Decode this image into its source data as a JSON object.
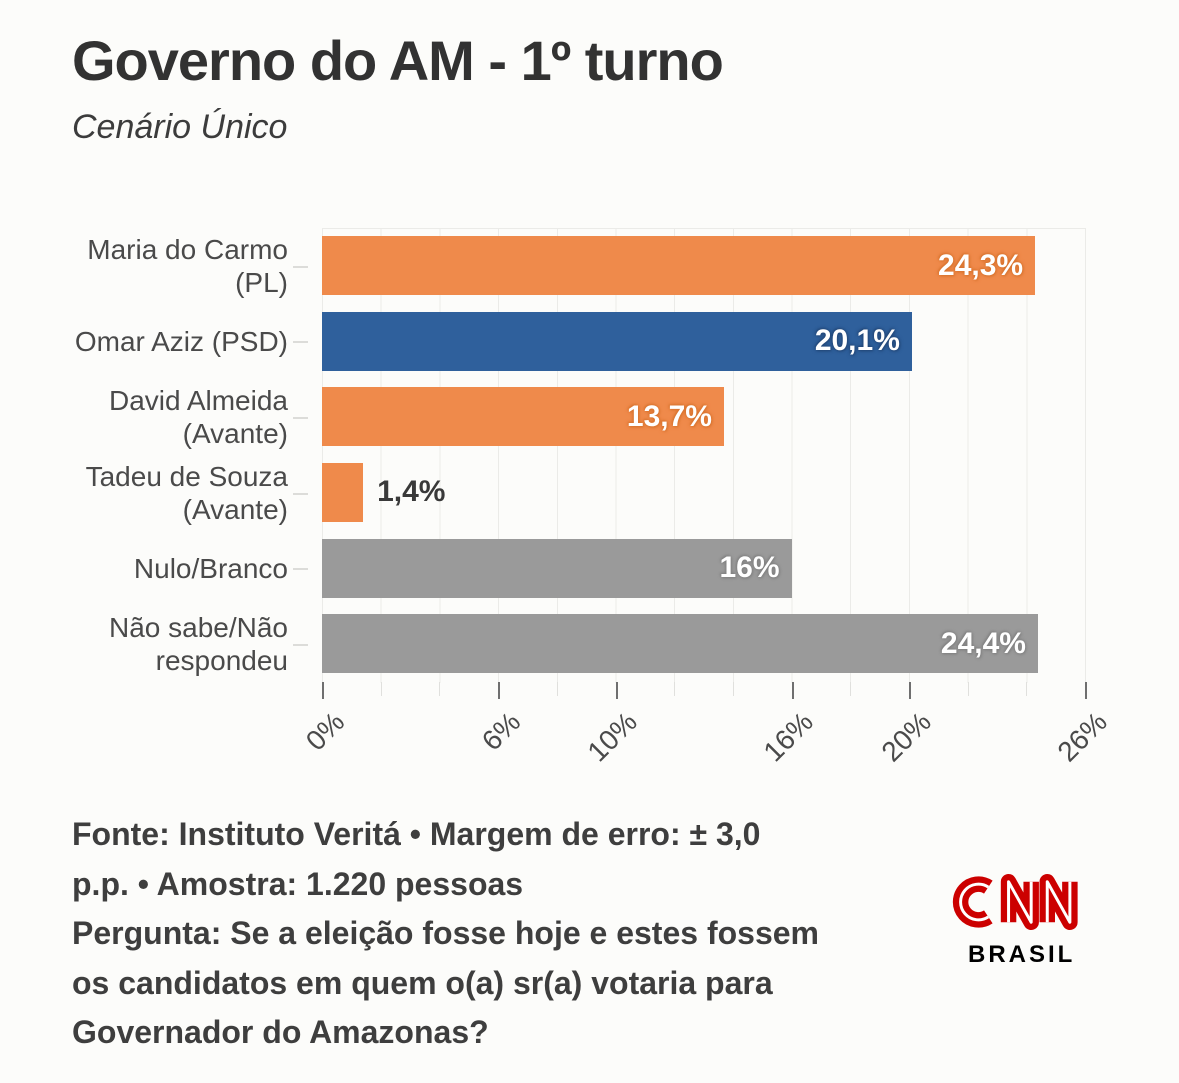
{
  "header": {
    "title": "Governo do AM - 1º turno",
    "subtitle": "Cenário Único"
  },
  "chart_data": {
    "type": "bar",
    "orientation": "horizontal",
    "title": "Governo do AM - 1º turno",
    "subtitle": "Cenário Único",
    "categories": [
      "Maria do Carmo (PL)",
      "Omar Aziz (PSD)",
      "David Almeida (Avante)",
      "Tadeu de Souza (Avante)",
      "Nulo/Branco",
      "Não sabe/Não respondeu"
    ],
    "values": [
      24.3,
      20.1,
      13.7,
      1.4,
      16,
      24.4
    ],
    "value_labels": [
      "24,3%",
      "20,1%",
      "13,7%",
      "1,4%",
      "16%",
      "24,4%"
    ],
    "bar_colors": [
      "#EF8A4B",
      "#2F609C",
      "#EF8A4B",
      "#EF8A4B",
      "#9A9A9A",
      "#9A9A9A"
    ],
    "value_shadow_colors": [
      "#D9742F",
      "#24497A",
      "#D9742F",
      "#D9742F",
      "#828282",
      "#828282"
    ],
    "value_label_inside": [
      true,
      true,
      true,
      false,
      true,
      true
    ],
    "xlim": [
      0,
      26
    ],
    "grid_step": 2,
    "grid": true,
    "x_tick_labels": [
      "0%",
      "6%",
      "10%",
      "16%",
      "20%",
      "26%"
    ],
    "x_tick_values": [
      0,
      6,
      10,
      16,
      20,
      26
    ],
    "legend": "none"
  },
  "footer": {
    "lines": [
      "Fonte: Instituto Veritá • Margem de erro: ± 3,0",
      "p.p. • Amostra: 1.220 pessoas",
      "Pergunta: Se a eleição fosse hoje e estes fossem",
      "os candidatos em quem o(a) sr(a) votaria para",
      "Governador do Amazonas?"
    ]
  },
  "logo": {
    "brand": "CNN",
    "region": "BRASIL",
    "color": "#CC0000"
  },
  "colors": {
    "background": "#FCFCFA",
    "orange": "#EF8A4B",
    "blue": "#2F609C",
    "gray": "#9A9A9A",
    "grid": "#EBEBE8",
    "title_text": "#323232",
    "body_text": "#3E3E3E",
    "cnn_red": "#CC0000"
  }
}
